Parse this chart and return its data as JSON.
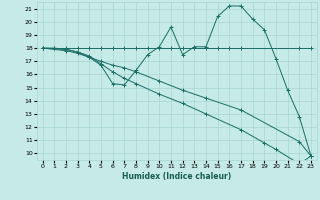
{
  "xlabel": "Humidex (Indice chaleur)",
  "xlim": [
    -0.5,
    23.5
  ],
  "ylim": [
    9.5,
    21.5
  ],
  "yticks": [
    10,
    11,
    12,
    13,
    14,
    15,
    16,
    17,
    18,
    19,
    20,
    21
  ],
  "xticks": [
    0,
    1,
    2,
    3,
    4,
    5,
    6,
    7,
    8,
    9,
    10,
    11,
    12,
    13,
    14,
    15,
    16,
    17,
    18,
    19,
    20,
    21,
    22,
    23
  ],
  "bg_color": "#c5eae7",
  "grid_color": "#a8d5d1",
  "line_color": "#1a6e66",
  "lines": [
    {
      "x": [
        0,
        1,
        2,
        3,
        4,
        5,
        6,
        7,
        8,
        9,
        10,
        11,
        12,
        13,
        14,
        15,
        16,
        17,
        22,
        23
      ],
      "y": [
        18,
        18,
        18,
        18,
        18,
        18,
        18,
        18,
        18,
        18,
        18,
        18,
        18,
        18,
        18,
        18,
        18,
        18,
        18,
        18
      ]
    },
    {
      "x": [
        0,
        2,
        3,
        4,
        5,
        6,
        7,
        8,
        10,
        12,
        14,
        17,
        22,
        23
      ],
      "y": [
        18,
        17.8,
        17.6,
        17.3,
        17.0,
        16.7,
        16.5,
        16.2,
        15.5,
        14.8,
        14.2,
        13.3,
        10.9,
        9.8
      ]
    },
    {
      "x": [
        0,
        2,
        3,
        4,
        5,
        6,
        7,
        8,
        10,
        12,
        14,
        17,
        19,
        20,
        22,
        23
      ],
      "y": [
        18,
        17.9,
        17.7,
        17.4,
        16.8,
        16.2,
        15.7,
        15.3,
        14.5,
        13.8,
        13.0,
        11.8,
        10.8,
        10.3,
        9.2,
        9.8
      ]
    },
    {
      "x": [
        0,
        1,
        2,
        3,
        4,
        5,
        6,
        7,
        8,
        9,
        10,
        11,
        12,
        13,
        14,
        15,
        16,
        17,
        18,
        19,
        20,
        21,
        22,
        23
      ],
      "y": [
        18,
        18,
        17.9,
        17.7,
        17.3,
        16.7,
        15.3,
        15.2,
        16.3,
        17.5,
        18.1,
        19.6,
        17.5,
        18.1,
        18.1,
        20.4,
        21.2,
        21.2,
        20.2,
        19.4,
        17.2,
        14.8,
        12.8,
        9.8
      ]
    }
  ]
}
